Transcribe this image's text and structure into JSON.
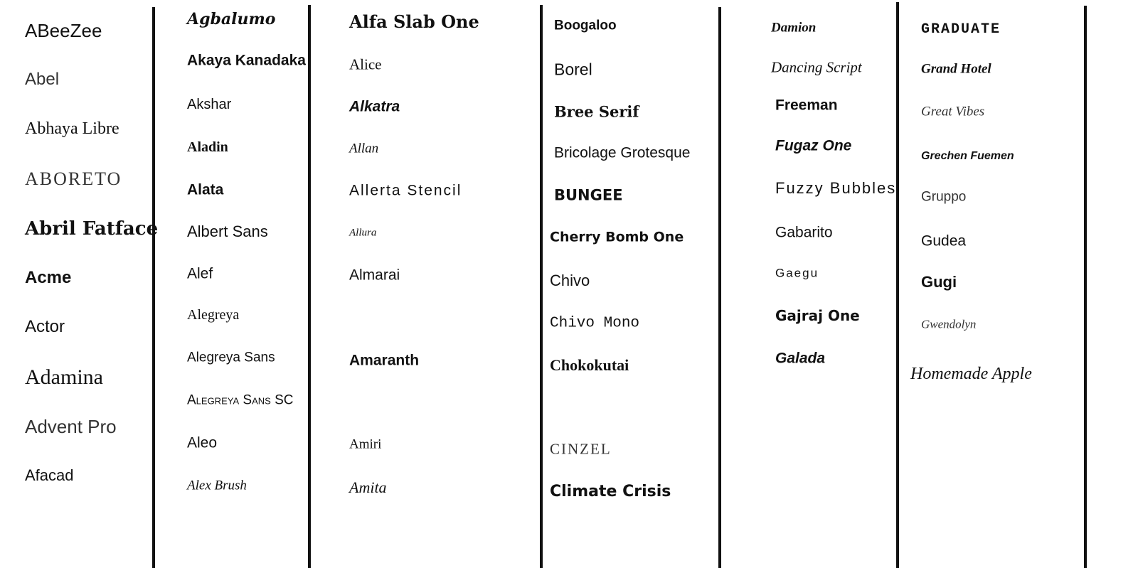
{
  "columns": [
    {
      "fonts": [
        "ABeeZee",
        "Abel",
        "Abhaya Libre",
        "ABORETO",
        "Abril Fatface",
        "Acme",
        "Actor",
        "Adamina",
        "Advent Pro",
        "Afacad"
      ]
    },
    {
      "fonts": [
        "Agbalumo",
        "Akaya Kanadaka",
        "Akshar",
        "Aladin",
        "Alata",
        "Albert Sans",
        "Alef",
        "Alegreya",
        "Alegreya Sans",
        "Alegreya Sans SC",
        "Aleo",
        "Alex Brush"
      ]
    },
    {
      "fonts": [
        "Alfa Slab One",
        "Alice",
        "Alkatra",
        "Allan",
        "Allerta Stencil",
        "Allura",
        "Almarai",
        "Amaranth",
        "Amiri",
        "Amita"
      ]
    },
    {
      "fonts": [
        "Boogaloo",
        "Borel",
        "Bree Serif",
        "Bricolage Grotesque",
        "BUNGEE",
        "Cherry Bomb One",
        "Chivo",
        "Chivo Mono",
        "Chokokutai",
        "CINZEL",
        "Climate Crisis"
      ]
    },
    {
      "fonts": [
        "Damion",
        "Dancing Script",
        "Freeman",
        "Fugaz One",
        "Fuzzy Bubbles",
        "Gabarito",
        "Gaegu",
        "Gajraj One",
        "Galada"
      ]
    },
    {
      "fonts": [
        "GRADUATE",
        "Grand Hotel",
        "Great Vibes",
        "Grechen Fuemen",
        "Gruppo",
        "Gudea",
        "Gugi",
        "Gwendolyn",
        "Homemade Apple"
      ]
    }
  ]
}
